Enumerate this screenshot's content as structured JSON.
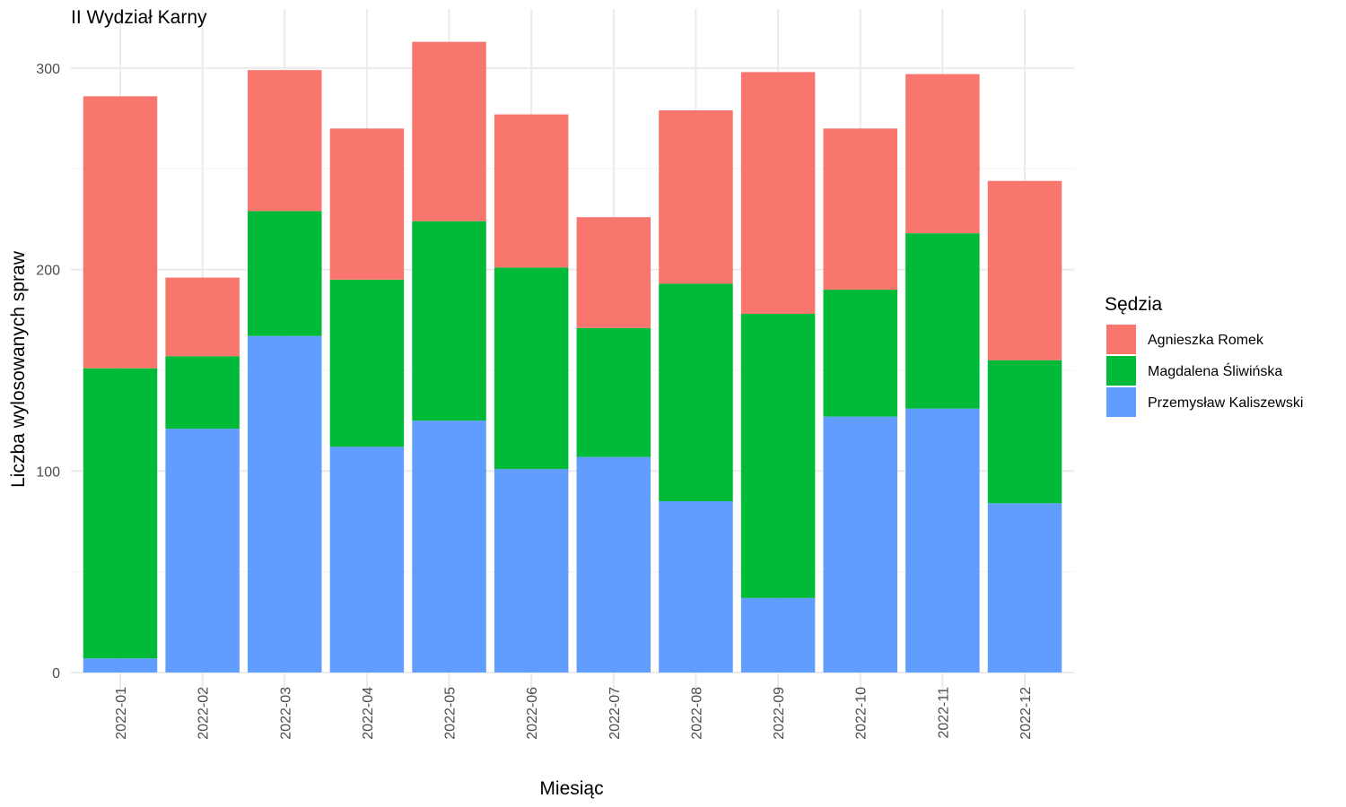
{
  "chart_data": {
    "type": "bar",
    "stacked": true,
    "title": "II Wydział Karny",
    "xlabel": "Miesiąc",
    "ylabel": "Liczba wylosowanych spraw",
    "ylim": [
      0,
      320
    ],
    "yticks": [
      0,
      100,
      200,
      300
    ],
    "grid": true,
    "legend_title": "Sędzia",
    "legend_position": "right",
    "categories": [
      "2022-01",
      "2022-02",
      "2022-03",
      "2022-04",
      "2022-05",
      "2022-06",
      "2022-07",
      "2022-08",
      "2022-09",
      "2022-10",
      "2022-11",
      "2022-12"
    ],
    "series": [
      {
        "name": "Przemysław Kaliszewski",
        "color": "#619CFF",
        "values": [
          7,
          121,
          167,
          112,
          125,
          101,
          107,
          85,
          37,
          127,
          131,
          84
        ]
      },
      {
        "name": "Magdalena Śliwińska",
        "color": "#00BA38",
        "values": [
          144,
          36,
          62,
          83,
          99,
          100,
          64,
          108,
          141,
          63,
          87,
          71
        ]
      },
      {
        "name": "Agnieszka Romek",
        "color": "#F8766D",
        "values": [
          135,
          39,
          70,
          75,
          89,
          76,
          55,
          86,
          120,
          80,
          79,
          89
        ]
      }
    ],
    "legend_order": [
      "Agnieszka Romek",
      "Magdalena Śliwińska",
      "Przemysław Kaliszewski"
    ]
  }
}
